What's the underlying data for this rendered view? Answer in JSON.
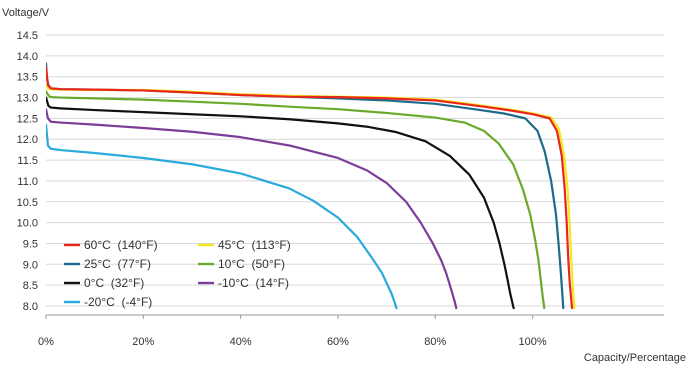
{
  "chart_data": {
    "type": "line",
    "title": "",
    "ylabel": "Voltage/V",
    "xlabel": "Capacity/Percentage",
    "xlim": [
      0,
      127
    ],
    "ylim": [
      7.95,
      14.5
    ],
    "x_ticks": [
      0,
      20,
      40,
      60,
      80,
      100
    ],
    "x_tick_labels": [
      "0%",
      "20%",
      "40%",
      "60%",
      "80%",
      "100%"
    ],
    "y_ticks": [
      8.0,
      8.5,
      9.0,
      9.5,
      10.0,
      10.5,
      11.0,
      11.5,
      12.0,
      12.5,
      13.0,
      13.5,
      14.0,
      14.5
    ],
    "y_tick_labels": [
      "8.0",
      "8.5",
      "9.0",
      "9.5",
      "10.0",
      "10.5",
      "11.0",
      "11.5",
      "12.0",
      "12.5",
      "13.0",
      "13.5",
      "14.0",
      "14.5"
    ],
    "grid": "horizontal",
    "legend_position": "bottom-left",
    "series": [
      {
        "name": "60°C  (140°F)",
        "color": "#e8261b",
        "x": [
          0,
          0.4,
          1,
          3,
          10,
          20,
          30,
          40,
          50,
          60,
          70,
          80,
          90,
          96,
          100,
          103.5,
          105,
          106,
          106.6,
          107,
          107.3,
          107.6,
          107.9,
          108.1
        ],
        "y": [
          13.72,
          13.3,
          13.22,
          13.2,
          13.19,
          13.17,
          13.12,
          13.06,
          13.02,
          13.01,
          12.98,
          12.93,
          12.78,
          12.68,
          12.6,
          12.5,
          12.2,
          11.6,
          10.8,
          10.0,
          9.2,
          8.6,
          8.2,
          7.95
        ]
      },
      {
        "name": "45°C  (113°F)",
        "color": "#f5e81c",
        "x": [
          0,
          0.4,
          1,
          3,
          10,
          20,
          30,
          40,
          50,
          60,
          70,
          80,
          90,
          96,
          100,
          103.8,
          105.4,
          106.5,
          107.2,
          107.6,
          107.9,
          108.2,
          108.4,
          108.6
        ],
        "y": [
          13.3,
          13.22,
          13.2,
          13.19,
          13.18,
          13.18,
          13.14,
          13.08,
          13.04,
          13.02,
          13.0,
          12.95,
          12.8,
          12.7,
          12.62,
          12.52,
          12.25,
          11.6,
          10.8,
          10.0,
          9.2,
          8.6,
          8.2,
          7.95
        ]
      },
      {
        "name": "25°C  (77°F)",
        "color": "#1f6a8a",
        "x": [
          0,
          0.2,
          0.5,
          1,
          3,
          10,
          20,
          30,
          40,
          50,
          60,
          70,
          80,
          88,
          94,
          98.5,
          101,
          102.5,
          103.8,
          104.8,
          105.4,
          105.8,
          106.1,
          106.3
        ],
        "y": [
          13.82,
          13.45,
          13.3,
          13.22,
          13.2,
          13.19,
          13.17,
          13.12,
          13.06,
          13.02,
          12.98,
          12.93,
          12.85,
          12.72,
          12.62,
          12.5,
          12.2,
          11.7,
          11.0,
          10.2,
          9.4,
          8.8,
          8.3,
          7.95
        ]
      },
      {
        "name": "10°C  (50°F)",
        "color": "#6aaa2a",
        "x": [
          0,
          0.5,
          1,
          3,
          10,
          20,
          30,
          40,
          50,
          60,
          70,
          80,
          86,
          90,
          93,
          96,
          98,
          99.5,
          100.5,
          101.2,
          101.7,
          102.1,
          102.4
        ],
        "y": [
          13.15,
          13.05,
          13.01,
          13.0,
          12.98,
          12.95,
          12.9,
          12.85,
          12.78,
          12.72,
          12.63,
          12.52,
          12.4,
          12.2,
          11.9,
          11.4,
          10.8,
          10.2,
          9.6,
          9.1,
          8.6,
          8.2,
          7.95
        ]
      },
      {
        "name": "0°C  (32°F)",
        "color": "#111111",
        "x": [
          0,
          0.5,
          1,
          3,
          10,
          20,
          30,
          40,
          50,
          60,
          66,
          72,
          78,
          83,
          87,
          90,
          92,
          93.2,
          94.2,
          94.9,
          95.4,
          95.8,
          96.1
        ],
        "y": [
          13.0,
          12.8,
          12.76,
          12.74,
          12.7,
          12.65,
          12.6,
          12.55,
          12.48,
          12.38,
          12.3,
          12.17,
          11.95,
          11.6,
          11.15,
          10.6,
          10.0,
          9.5,
          9.0,
          8.6,
          8.3,
          8.1,
          7.95
        ]
      },
      {
        "name": "-10°C  (14°F)",
        "color": "#7d3c98",
        "x": [
          0,
          0.4,
          1,
          3,
          10,
          20,
          30,
          40,
          50,
          60,
          66,
          70,
          74,
          77,
          79.5,
          81.2,
          82.2,
          83,
          83.5,
          84,
          84.3
        ],
        "y": [
          12.72,
          12.5,
          12.42,
          12.4,
          12.35,
          12.27,
          12.18,
          12.05,
          11.85,
          11.55,
          11.25,
          10.95,
          10.5,
          10.0,
          9.5,
          9.1,
          8.8,
          8.5,
          8.3,
          8.1,
          7.95
        ]
      },
      {
        "name": "-20°C  (-4°F)",
        "color": "#2aa9dc",
        "x": [
          0,
          0.4,
          1,
          3,
          10,
          20,
          30,
          40,
          50,
          55,
          60,
          64,
          67,
          69,
          70.2,
          71,
          71.6,
          72
        ],
        "y": [
          12.35,
          11.85,
          11.77,
          11.74,
          11.67,
          11.55,
          11.4,
          11.18,
          10.82,
          10.52,
          10.12,
          9.65,
          9.15,
          8.8,
          8.5,
          8.3,
          8.1,
          7.95
        ]
      }
    ],
    "legend_columns": [
      [
        0,
        2,
        4,
        6
      ],
      [
        1,
        3,
        5
      ]
    ]
  }
}
